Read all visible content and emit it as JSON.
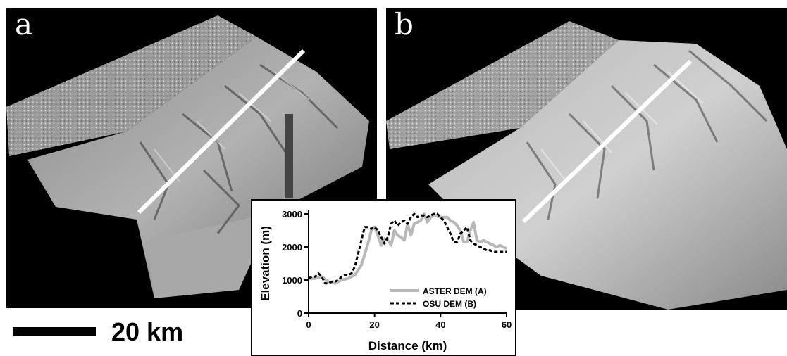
{
  "panels": [
    {
      "label": "a"
    },
    {
      "label": "b"
    }
  ],
  "scale_bar": {
    "label": "20 km"
  },
  "colors": {
    "aster": "#b8b8b8",
    "osu": "#000000",
    "background": "#000000"
  },
  "chart_data": {
    "type": "line",
    "title": "",
    "xlabel": "Distance (km)",
    "ylabel": "Elevation (m)",
    "xlim": [
      0,
      60
    ],
    "ylim": [
      0,
      3000
    ],
    "xticks": [
      0,
      20,
      40,
      60
    ],
    "yticks": [
      0,
      1000,
      2000,
      3000
    ],
    "legend_position": "bottom-right",
    "series": [
      {
        "name": "ASTER DEM (A)",
        "style": "solid",
        "color": "#b8b8b8",
        "x": [
          0,
          2,
          4,
          6,
          8,
          10,
          12,
          14,
          16,
          18,
          19,
          20,
          21,
          22,
          23,
          24,
          25,
          26,
          27,
          28,
          29,
          30,
          31,
          32,
          33,
          34,
          35,
          36,
          37,
          38,
          39,
          40,
          41,
          42,
          43,
          44,
          45,
          46,
          47,
          48,
          49,
          50,
          51,
          52,
          53,
          54,
          55,
          56,
          57,
          58,
          59,
          60
        ],
        "y": [
          1050,
          1050,
          1100,
          950,
          900,
          1000,
          1050,
          1150,
          1450,
          2100,
          2500,
          2600,
          2350,
          2050,
          2250,
          2200,
          2050,
          2500,
          2350,
          2300,
          2200,
          2700,
          2350,
          2700,
          2750,
          2800,
          3000,
          2750,
          2900,
          2950,
          2950,
          2900,
          2900,
          2900,
          2800,
          2750,
          2650,
          2500,
          2150,
          2150,
          2500,
          2750,
          2200,
          2150,
          2200,
          2150,
          2100,
          2050,
          2000,
          2050,
          2000,
          1950
        ]
      },
      {
        "name": "OSU DEM (B)",
        "style": "dashed",
        "color": "#000000",
        "x": [
          0,
          1,
          2,
          3,
          4,
          5,
          6,
          7,
          8,
          9,
          10,
          11,
          12,
          13,
          14,
          15,
          16,
          17,
          18,
          19,
          20,
          21,
          22,
          23,
          24,
          25,
          26,
          27,
          28,
          29,
          30,
          31,
          32,
          33,
          34,
          35,
          36,
          37,
          38,
          39,
          40,
          41,
          42,
          43,
          44,
          45,
          46,
          47,
          48,
          49,
          50,
          51,
          52,
          53,
          54,
          55,
          56,
          57,
          58,
          59,
          60
        ],
        "y": [
          1050,
          1100,
          1100,
          1200,
          1100,
          900,
          900,
          950,
          950,
          1000,
          1100,
          1150,
          1150,
          1200,
          1400,
          1800,
          2200,
          2600,
          2600,
          2550,
          2600,
          2500,
          2300,
          2100,
          2300,
          2700,
          2800,
          2650,
          2750,
          2800,
          2700,
          2900,
          3000,
          2900,
          2950,
          2950,
          2900,
          2950,
          3000,
          3000,
          2900,
          2800,
          2600,
          2400,
          2150,
          2150,
          2400,
          2500,
          2600,
          2200,
          2100,
          2050,
          2000,
          1950,
          1900,
          1900,
          1850,
          1850,
          1850,
          1850,
          1850
        ]
      }
    ]
  }
}
